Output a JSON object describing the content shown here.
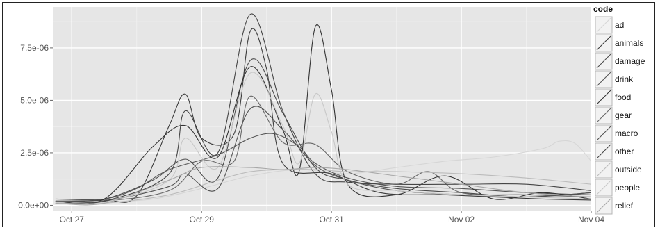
{
  "chart_data": {
    "type": "line",
    "title": "",
    "xlabel": "",
    "ylabel": "",
    "x_ticks": [
      "Oct 27",
      "Oct 29",
      "Oct 31",
      "Nov 02",
      "Nov 04"
    ],
    "x_range": [
      "2012-10-26T17:00",
      "2012-11-04T00:00"
    ],
    "y_ticks": [
      "0.0e+00",
      "2.5e-06",
      "5.0e-06",
      "7.5e-06"
    ],
    "ylim": [
      -2.5e-07,
      9.45e-06
    ],
    "grid": true,
    "legend": {
      "title": "code",
      "placement": "right"
    },
    "series": [
      {
        "name": "ad",
        "color": "#d6d6d6",
        "points": [
          [
            "2012-10-26T18:00",
            1e-07
          ],
          [
            "2012-10-27T12:00",
            1.5e-07
          ],
          [
            "2012-10-28T06:00",
            3e-07
          ],
          [
            "2012-10-29T00:00",
            8e-07
          ],
          [
            "2012-10-29T18:00",
            1.4e-06
          ],
          [
            "2012-10-30T12:00",
            1.7e-06
          ],
          [
            "2012-10-31T06:00",
            1.5e-06
          ],
          [
            "2012-11-01T00:00",
            1.8e-06
          ],
          [
            "2012-11-01T18:00",
            2.1e-06
          ],
          [
            "2012-11-02T12:00",
            2.3e-06
          ],
          [
            "2012-11-03T06:00",
            2.7e-06
          ],
          [
            "2012-11-03T12:00",
            3.05e-06
          ],
          [
            "2012-11-03T18:00",
            2.95e-06
          ],
          [
            "2012-11-04T00:00",
            2.1e-06
          ]
        ]
      },
      {
        "name": "animals",
        "color": "#3a3a3a",
        "points": [
          [
            "2012-10-26T18:00",
            2e-07
          ],
          [
            "2012-10-27T12:00",
            2.5e-07
          ],
          [
            "2012-10-28T00:00",
            4.5e-07
          ],
          [
            "2012-10-28T12:00",
            3.8e-06
          ],
          [
            "2012-10-28T18:00",
            5.3e-06
          ],
          [
            "2012-10-29T00:00",
            3.2e-06
          ],
          [
            "2012-10-29T12:00",
            3.4e-06
          ],
          [
            "2012-10-29T18:00",
            8.3e-06
          ],
          [
            "2012-10-30T00:00",
            6.5e-06
          ],
          [
            "2012-10-30T06:00",
            2e-06
          ],
          [
            "2012-10-31T00:00",
            1.5e-06
          ],
          [
            "2012-10-31T18:00",
            6e-07
          ],
          [
            "2012-11-01T18:00",
            5e-07
          ],
          [
            "2012-11-02T12:00",
            4e-07
          ],
          [
            "2012-11-03T06:00",
            3e-07
          ],
          [
            "2012-11-04T00:00",
            2.5e-07
          ]
        ]
      },
      {
        "name": "damage",
        "color": "#4a4a4a",
        "points": [
          [
            "2012-10-26T18:00",
            2e-07
          ],
          [
            "2012-10-27T12:00",
            3e-07
          ],
          [
            "2012-10-28T06:00",
            1.2e-06
          ],
          [
            "2012-10-28T18:00",
            2.2e-06
          ],
          [
            "2012-10-29T06:00",
            1.3e-06
          ],
          [
            "2012-10-29T18:00",
            6.9e-06
          ],
          [
            "2012-10-30T06:00",
            4.4e-06
          ],
          [
            "2012-10-30T18:00",
            1.8e-06
          ],
          [
            "2012-10-31T06:00",
            1.2e-06
          ],
          [
            "2012-11-01T00:00",
            8e-07
          ],
          [
            "2012-11-02T00:00",
            6e-07
          ],
          [
            "2012-11-03T00:00",
            4e-07
          ],
          [
            "2012-11-04T00:00",
            6e-07
          ]
        ]
      },
      {
        "name": "drink",
        "color": "#555555",
        "points": [
          [
            "2012-10-26T18:00",
            3e-07
          ],
          [
            "2012-10-27T12:00",
            3e-07
          ],
          [
            "2012-10-28T00:00",
            8e-07
          ],
          [
            "2012-10-28T12:00",
            1.7e-06
          ],
          [
            "2012-10-29T06:00",
            2.4e-06
          ],
          [
            "2012-10-29T18:00",
            3.2e-06
          ],
          [
            "2012-10-30T03:00",
            3.4e-06
          ],
          [
            "2012-10-30T12:00",
            2.8e-06
          ],
          [
            "2012-10-30T18:00",
            2e-06
          ],
          [
            "2012-10-31T06:00",
            1.3e-06
          ],
          [
            "2012-11-01T00:00",
            9e-07
          ],
          [
            "2012-11-02T00:00",
            8e-07
          ],
          [
            "2012-11-03T00:00",
            6e-07
          ],
          [
            "2012-11-04T00:00",
            5e-07
          ]
        ]
      },
      {
        "name": "food",
        "color": "#333333",
        "points": [
          [
            "2012-10-26T18:00",
            2e-07
          ],
          [
            "2012-10-27T12:00",
            3e-07
          ],
          [
            "2012-10-28T06:00",
            2.8e-06
          ],
          [
            "2012-10-28T18:00",
            3.8e-06
          ],
          [
            "2012-10-29T06:00",
            2.3e-06
          ],
          [
            "2012-10-29T18:00",
            6.6e-06
          ],
          [
            "2012-10-30T06:00",
            3.6e-06
          ],
          [
            "2012-10-30T12:00",
            1.6e-06
          ],
          [
            "2012-10-30T18:00",
            8.5e-06
          ],
          [
            "2012-10-31T00:00",
            5.5e-06
          ],
          [
            "2012-10-31T06:00",
            1e-06
          ],
          [
            "2012-11-01T00:00",
            5e-07
          ],
          [
            "2012-11-01T18:00",
            1.4e-06
          ],
          [
            "2012-11-02T12:00",
            3e-07
          ],
          [
            "2012-11-03T06:00",
            6e-07
          ],
          [
            "2012-11-04T00:00",
            3e-07
          ]
        ]
      },
      {
        "name": "gear",
        "color": "#666666",
        "points": [
          [
            "2012-10-26T18:00",
            2e-07
          ],
          [
            "2012-10-27T12:00",
            2e-07
          ],
          [
            "2012-10-28T12:00",
            7e-07
          ],
          [
            "2012-10-29T00:00",
            2.1e-06
          ],
          [
            "2012-10-29T12:00",
            2.1e-06
          ],
          [
            "2012-10-29T18:00",
            5.2e-06
          ],
          [
            "2012-10-30T06:00",
            3e-06
          ],
          [
            "2012-10-30T18:00",
            2.9e-06
          ],
          [
            "2012-10-31T06:00",
            1.6e-06
          ],
          [
            "2012-11-01T00:00",
            1e-06
          ],
          [
            "2012-11-01T12:00",
            1.6e-06
          ],
          [
            "2012-11-02T00:00",
            6e-07
          ],
          [
            "2012-11-03T00:00",
            5e-07
          ],
          [
            "2012-11-04T00:00",
            4e-07
          ]
        ]
      },
      {
        "name": "macro",
        "color": "#505050",
        "points": [
          [
            "2012-10-26T18:00",
            1e-07
          ],
          [
            "2012-10-27T12:00",
            2e-07
          ],
          [
            "2012-10-28T12:00",
            9e-07
          ],
          [
            "2012-10-28T18:00",
            1.5e-06
          ],
          [
            "2012-10-29T06:00",
            8e-07
          ],
          [
            "2012-10-29T18:00",
            4.6e-06
          ],
          [
            "2012-10-30T06:00",
            3.6e-06
          ],
          [
            "2012-10-30T18:00",
            1.9e-06
          ],
          [
            "2012-10-31T06:00",
            1.2e-06
          ],
          [
            "2012-11-01T00:00",
            7e-07
          ],
          [
            "2012-11-02T00:00",
            5e-07
          ],
          [
            "2012-11-03T00:00",
            4e-07
          ],
          [
            "2012-11-04T00:00",
            6e-07
          ]
        ]
      },
      {
        "name": "other",
        "color": "#444444",
        "points": [
          [
            "2012-10-26T18:00",
            1e-07
          ],
          [
            "2012-10-27T12:00",
            2e-07
          ],
          [
            "2012-10-28T12:00",
            1.5e-06
          ],
          [
            "2012-10-28T18:00",
            4.5e-06
          ],
          [
            "2012-10-29T06:00",
            2.5e-06
          ],
          [
            "2012-10-29T18:00",
            9.1e-06
          ],
          [
            "2012-10-30T06:00",
            4.5e-06
          ],
          [
            "2012-10-30T18:00",
            1.5e-06
          ],
          [
            "2012-10-31T06:00",
            1.1e-06
          ],
          [
            "2012-11-01T00:00",
            1e-06
          ],
          [
            "2012-11-02T00:00",
            1e-06
          ],
          [
            "2012-11-03T00:00",
            1e-06
          ],
          [
            "2012-11-04T00:00",
            7e-07
          ]
        ]
      },
      {
        "name": "outside",
        "color": "#bbbbbb",
        "points": [
          [
            "2012-10-26T18:00",
            1e-07
          ],
          [
            "2012-10-27T12:00",
            1e-07
          ],
          [
            "2012-10-28T12:00",
            5e-07
          ],
          [
            "2012-10-29T06:00",
            1.2e-06
          ],
          [
            "2012-10-29T18:00",
            1.6e-06
          ],
          [
            "2012-10-30T06:00",
            1.7e-06
          ],
          [
            "2012-10-30T18:00",
            1.7e-06
          ],
          [
            "2012-10-31T06:00",
            1.6e-06
          ],
          [
            "2012-11-01T00:00",
            1.6e-06
          ],
          [
            "2012-11-02T00:00",
            1.5e-06
          ],
          [
            "2012-11-03T00:00",
            1.3e-06
          ],
          [
            "2012-11-04T00:00",
            1e-06
          ]
        ]
      },
      {
        "name": "people",
        "color": "#c8c8c8",
        "points": [
          [
            "2012-10-26T18:00",
            1e-07
          ],
          [
            "2012-10-27T12:00",
            1.5e-07
          ],
          [
            "2012-10-28T12:00",
            1.2e-06
          ],
          [
            "2012-10-28T18:00",
            3.2e-06
          ],
          [
            "2012-10-29T06:00",
            1.8e-06
          ],
          [
            "2012-10-29T18:00",
            6.3e-06
          ],
          [
            "2012-10-30T06:00",
            3.8e-06
          ],
          [
            "2012-10-30T12:00",
            2e-06
          ],
          [
            "2012-10-30T18:00",
            5.3e-06
          ],
          [
            "2012-10-31T00:00",
            3.5e-06
          ],
          [
            "2012-10-31T06:00",
            1e-06
          ],
          [
            "2012-11-01T00:00",
            7e-07
          ],
          [
            "2012-11-02T00:00",
            5e-07
          ],
          [
            "2012-11-03T00:00",
            4e-07
          ],
          [
            "2012-11-04T00:00",
            3e-07
          ]
        ]
      },
      {
        "name": "relief",
        "color": "#a8a8a8",
        "points": [
          [
            "2012-10-26T18:00",
            1e-07
          ],
          [
            "2012-10-27T12:00",
            1e-07
          ],
          [
            "2012-10-28T12:00",
            1.2e-06
          ],
          [
            "2012-10-29T00:00",
            1.8e-06
          ],
          [
            "2012-10-29T18:00",
            1.8e-06
          ],
          [
            "2012-10-30T06:00",
            1.7e-06
          ],
          [
            "2012-10-30T18:00",
            1.8e-06
          ],
          [
            "2012-10-31T06:00",
            1.7e-06
          ],
          [
            "2012-11-01T00:00",
            1.4e-06
          ],
          [
            "2012-11-02T00:00",
            1e-06
          ],
          [
            "2012-11-03T00:00",
            6e-07
          ],
          [
            "2012-11-04T00:00",
            4e-07
          ]
        ]
      }
    ]
  },
  "colors": {
    "panel_bg": "#e6e6e6",
    "grid": "#ffffff",
    "text": "#555555"
  }
}
